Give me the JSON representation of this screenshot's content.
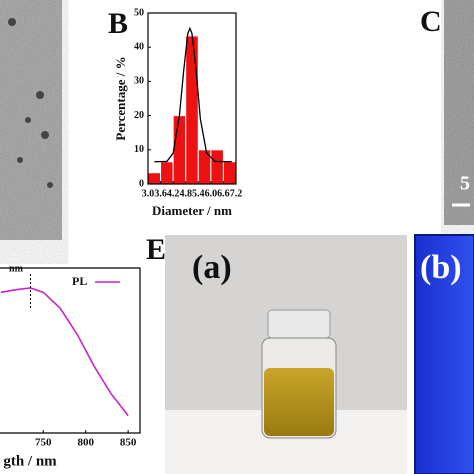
{
  "chart_data": [
    {
      "type": "histogram",
      "panel_label": "B",
      "x_label": "Diameter / nm",
      "y_label": "Percentage / %",
      "bins": [
        3.0,
        3.6,
        4.2,
        4.8,
        5.4,
        6.0,
        6.6,
        7.2
      ],
      "values": [
        3.3,
        6.5,
        20,
        43.3,
        10,
        10,
        6.5
      ],
      "color": "#ee1111",
      "fit": {
        "color": "#000000",
        "x": [
          3.3,
          3.9,
          4.2,
          4.5,
          4.7,
          4.9,
          5.0,
          5.1,
          5.3,
          5.5,
          5.8,
          6.2,
          7.0
        ],
        "values": [
          6.5,
          6.6,
          9,
          20,
          33,
          44,
          45.5,
          44,
          33,
          19,
          9,
          6.6,
          6.5
        ]
      },
      "xlim": [
        3.0,
        7.2
      ],
      "xticks": [
        {
          "value": 3,
          "label": "3.0"
        },
        3.6,
        4.2,
        4.8,
        5.4,
        {
          "value": 6,
          "label": "6.0"
        },
        6.6,
        7.2
      ],
      "ylim": [
        0,
        50
      ],
      "yticks": [
        0,
        10,
        20,
        30,
        40,
        50
      ]
    },
    {
      "type": "line",
      "x_label": "gth / nm",
      "x": [
        700,
        720,
        735,
        750,
        770,
        790,
        810,
        830,
        850
      ],
      "series": [
        {
          "name": "PL",
          "color": "#cc22cc",
          "values": [
            0.97,
            0.99,
            1.0,
            0.97,
            0.86,
            0.68,
            0.46,
            0.27,
            0.12
          ]
        }
      ],
      "annotation": {
        "text": "nm",
        "x": 735
      },
      "xlim": [
        699,
        864
      ],
      "xticks": [
        750,
        800,
        850
      ],
      "ylim": [
        0,
        1.0
      ]
    }
  ],
  "panels": {
    "C": "C",
    "C_scale": "5",
    "E": "E",
    "a": "(a)",
    "b": "(b)"
  }
}
